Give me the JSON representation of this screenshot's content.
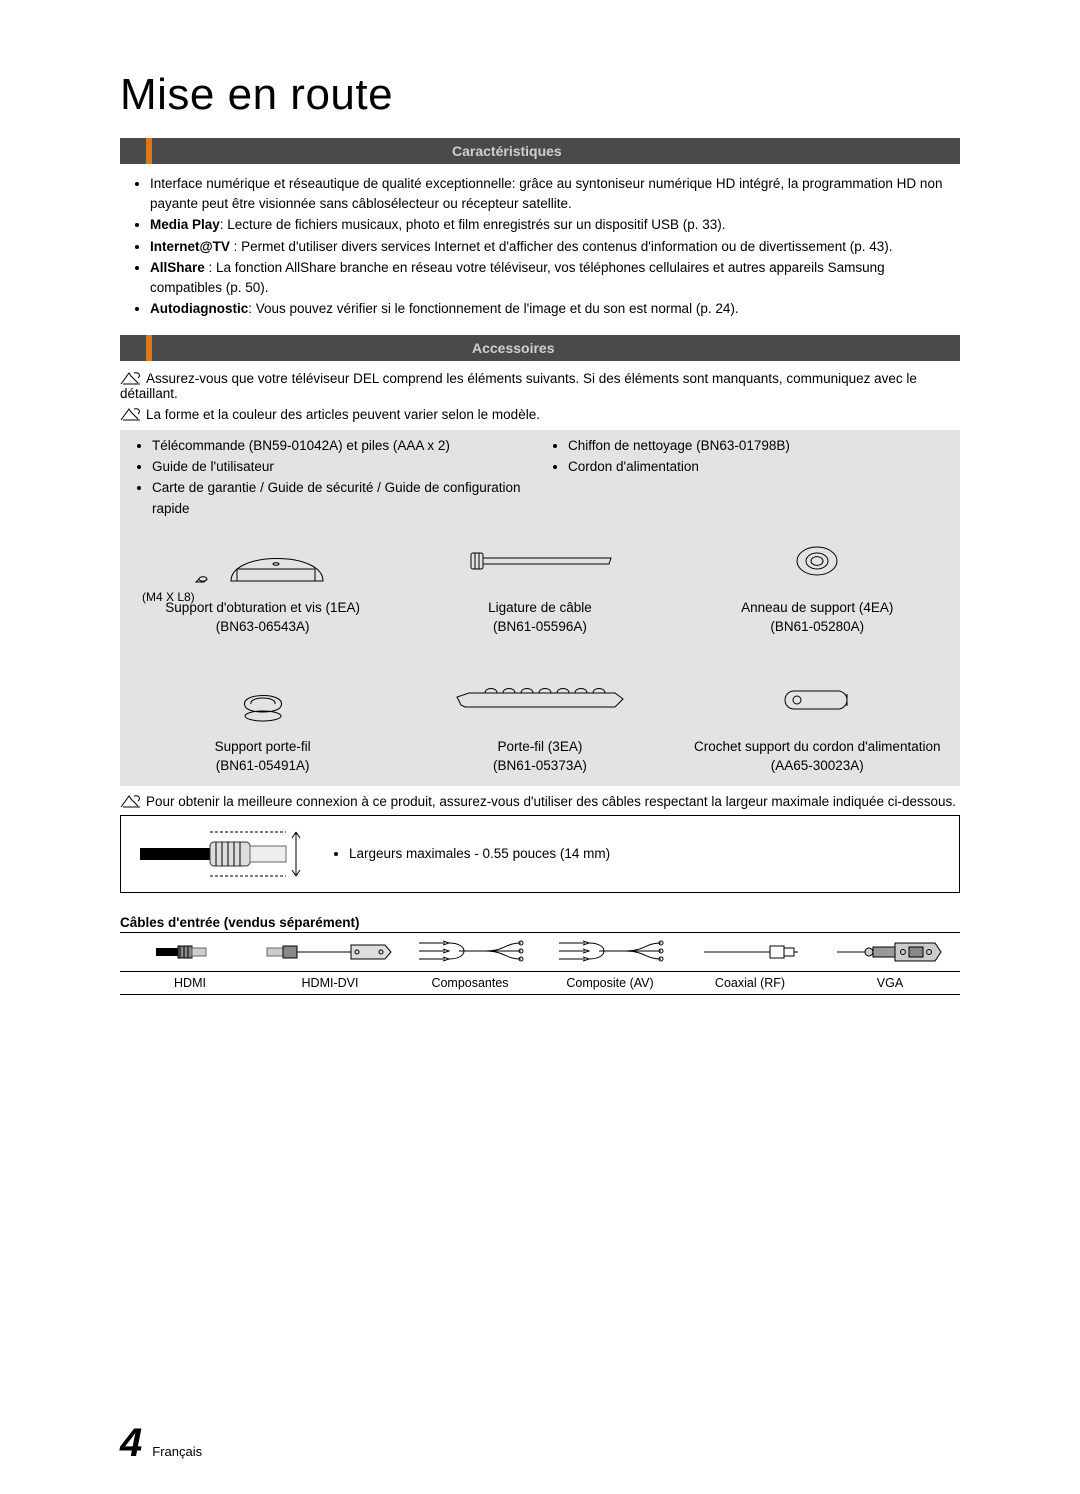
{
  "page_title": "Mise en route",
  "sections": {
    "features": {
      "heading": "Caractéristiques",
      "items": [
        "Interface numérique et réseautique de qualité exceptionnelle: grâce au syntoniseur numérique HD intégré, la programmation HD non payante peut être visionnée sans câblosélecteur ou récepteur satellite.",
        "<b>Media Play</b>: Lecture de fichiers musicaux, photo et film enregistrés sur un dispositif USB (p. 33).",
        "<b>Internet@TV</b> : Permet d'utiliser divers services Internet et d'afficher des contenus d'information ou de divertissement (p. 43).",
        "<b>AllShare</b> : La fonction AllShare branche en réseau votre téléviseur, vos téléphones cellulaires et autres appareils Samsung compatibles (p. 50).",
        "<b>Autodiagnostic</b>: Vous pouvez vérifier si le fonctionnement  de l'image et du son est normal (p. 24)."
      ]
    },
    "accessories": {
      "heading": "Accessoires",
      "notes": [
        "Assurez-vous que votre téléviseur DEL comprend les éléments suivants. Si des éléments sont manquants, communiquez avec le détaillant.",
        "La forme et la couleur des articles peuvent varier selon le modèle."
      ],
      "included_left": [
        "Télécommande (BN59-01042A) et piles (AAA x 2)",
        "Guide de l'utilisateur",
        "Carte de garantie / Guide de sécurité / Guide de configuration rapide"
      ],
      "included_right": [
        "Chiffon de nettoyage (BN63-01798B)",
        "Cordon d'alimentation"
      ],
      "row1": [
        {
          "img_label": "(M4 X L8)",
          "name": "Support d'obturation et vis (1EA)",
          "part": "(BN63-06543A)"
        },
        {
          "img_label": "",
          "name": "Ligature de câble",
          "part": "(BN61-05596A)"
        },
        {
          "img_label": "",
          "name": "Anneau de support (4EA)",
          "part": "(BN61-05280A)"
        }
      ],
      "row2": [
        {
          "name": "Support porte-fil",
          "part": "(BN61-05491A)"
        },
        {
          "name": "Porte-fil (3EA)",
          "part": "(BN61-05373A)"
        },
        {
          "name": "Crochet support du cordon d'alimentation",
          "part": "(AA65-30023A)"
        }
      ],
      "note_after": "Pour obtenir la meilleure connexion à ce produit, assurez-vous d'utiliser des câbles respectant la largeur maximale indiquée ci-dessous.",
      "cable_note": "Largeurs maximales - 0.55 pouces (14 mm)"
    },
    "cables": {
      "heading": "Câbles d'entrée (vendus séparément)",
      "items": [
        "HDMI",
        "HDMI-DVI",
        "Composantes",
        "Composite (AV)",
        "Coaxial (RF)",
        "VGA"
      ]
    }
  },
  "footer": {
    "page_number": "4",
    "language": "Français"
  },
  "colors": {
    "bar_bg": "#4a4a4a",
    "bar_accent": "#d97a1a",
    "bar_text": "#cfcfcf",
    "grey_box": "#e3e3e3"
  }
}
